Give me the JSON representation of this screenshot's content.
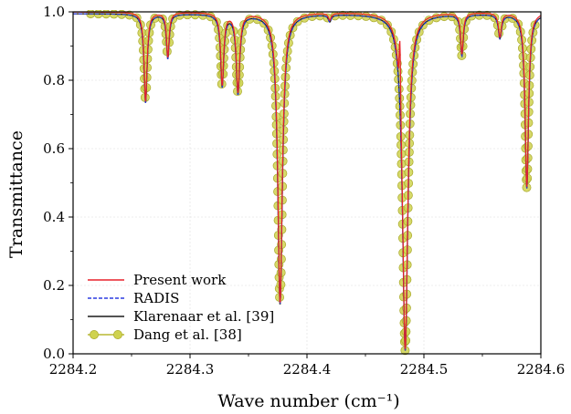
{
  "chart_data": {
    "type": "line",
    "xlabel": "Wave number (cm⁻¹)",
    "ylabel": "Transmittance",
    "xlim": [
      2284.2,
      2284.6
    ],
    "ylim": [
      0.0,
      1.0
    ],
    "xticks": [
      "2284.2",
      "2284.3",
      "2284.4",
      "2284.5",
      "2284.6"
    ],
    "yticks": [
      "0.0",
      "0.2",
      "0.4",
      "0.6",
      "0.8",
      "1.0"
    ],
    "grid": true,
    "legend_position": "lower-left",
    "baseline": 0.995,
    "lines": [
      {
        "center": 2284.262,
        "depth": 0.26,
        "width": 0.0016
      },
      {
        "center": 2284.281,
        "depth": 0.13,
        "width": 0.0014
      },
      {
        "center": 2284.3275,
        "depth": 0.21,
        "width": 0.0016
      },
      {
        "center": 2284.341,
        "depth": 0.23,
        "width": 0.0018
      },
      {
        "center": 2284.377,
        "depth": 0.85,
        "width": 0.0024
      },
      {
        "center": 2284.4195,
        "depth": 0.02,
        "width": 0.0015
      },
      {
        "center": 2284.484,
        "depth": 0.985,
        "width": 0.0028
      },
      {
        "center": 2284.5325,
        "depth": 0.12,
        "width": 0.0014
      },
      {
        "center": 2284.565,
        "depth": 0.07,
        "width": 0.0016
      },
      {
        "center": 2284.588,
        "depth": 0.51,
        "width": 0.0018
      }
    ],
    "series": [
      {
        "name": "Present work",
        "color": "#e8212b",
        "style": "solid"
      },
      {
        "name": "RADIS",
        "color": "#2b3be0",
        "style": "dashed"
      },
      {
        "name": "Klarenaar et al.  [39]",
        "color": "#1a1a1a",
        "style": "solid"
      },
      {
        "name": "Dang et al.  [38]",
        "color": "#b8b832",
        "marker_fill": "#cfd24f",
        "style": "solid-markers"
      }
    ]
  }
}
